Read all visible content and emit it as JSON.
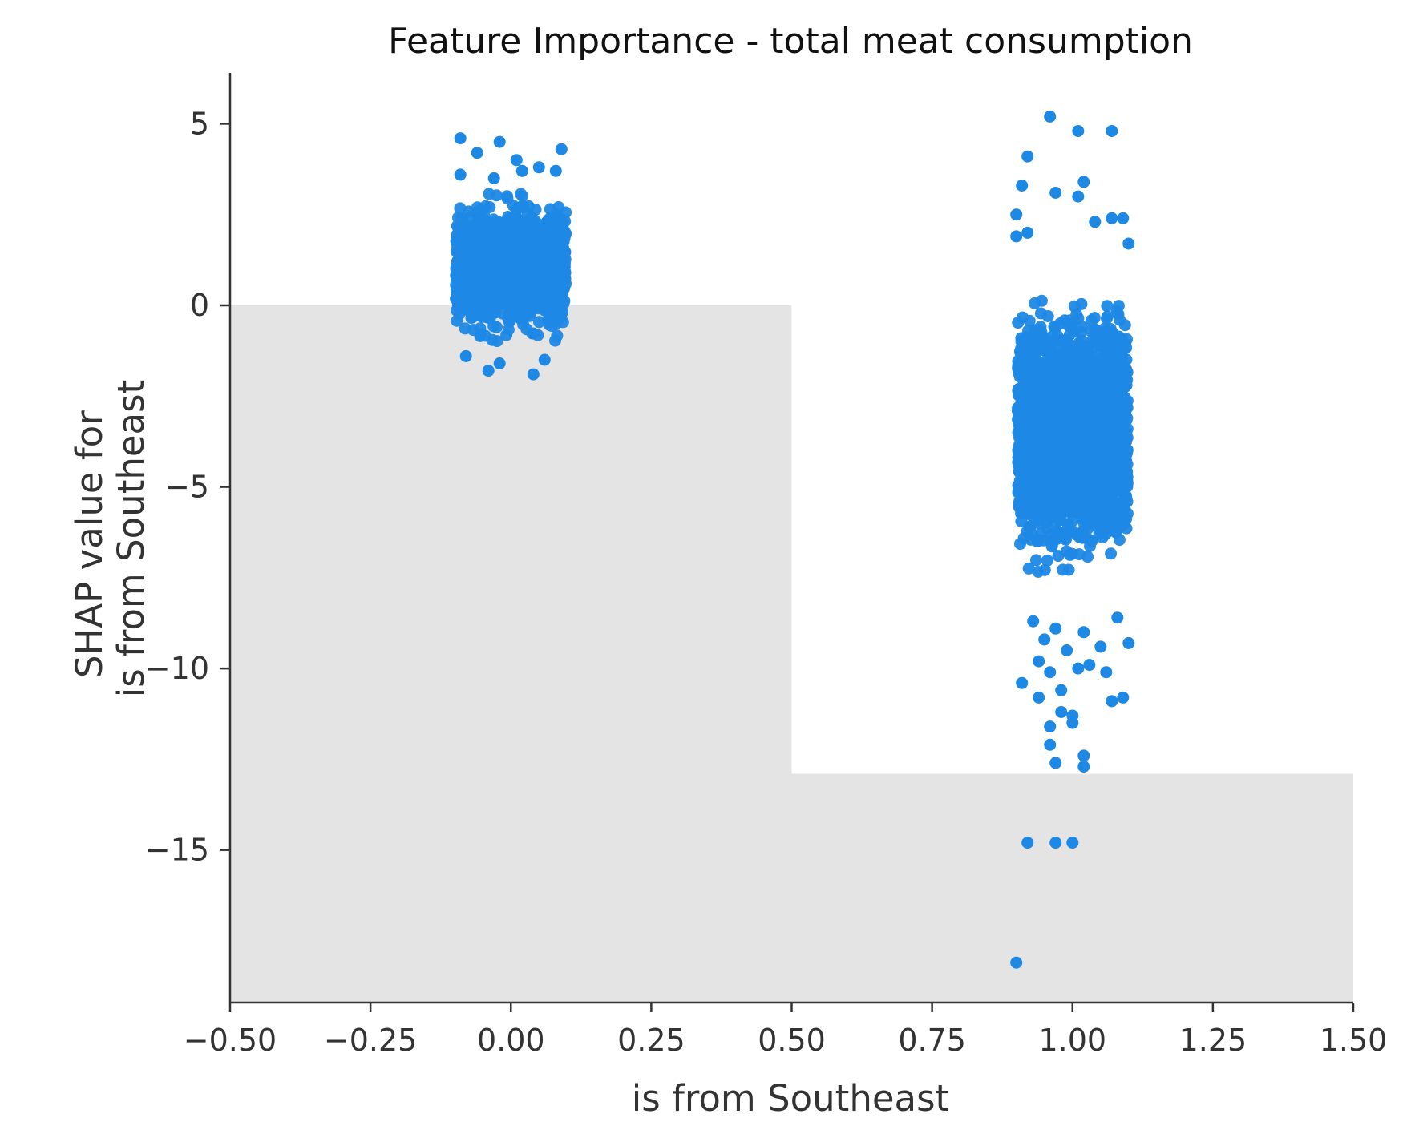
{
  "chart_data": {
    "type": "scatter",
    "title": "Feature Importance - total meat consumption",
    "xlabel": "is from Southeast",
    "ylabel_lines": [
      "SHAP value for",
      "is from Southeast"
    ],
    "xlim": [
      -0.5,
      1.5
    ],
    "ylim": [
      -19.2,
      6.4
    ],
    "x_ticks": [
      -0.5,
      -0.25,
      0.0,
      0.25,
      0.5,
      0.75,
      1.0,
      1.25,
      1.5
    ],
    "x_tick_labels": [
      "−0.50",
      "−0.25",
      "0.00",
      "0.25",
      "0.50",
      "0.75",
      "1.00",
      "1.25",
      "1.50"
    ],
    "y_ticks": [
      5,
      0,
      -5,
      -10,
      -15
    ],
    "y_tick_labels": [
      "5",
      "0",
      "−5",
      "−10",
      "−15"
    ],
    "grid": false,
    "point_color": "#1E88E5",
    "background_histogram_color": "#e4e4e4",
    "background_histogram": [
      {
        "x0": -0.5,
        "x1": 0.5,
        "level": 0.0
      },
      {
        "x0": 0.5,
        "x1": 1.5,
        "level": -12.9
      }
    ],
    "clusters": [
      {
        "x_center": 0.0,
        "jitter": 0.1,
        "dense_y_range": [
          -1.2,
          3.3
        ],
        "dense_count": 1500
      },
      {
        "x_center": 1.0,
        "jitter": 0.1,
        "dense_y_range": [
          -7.6,
          0.6
        ],
        "dense_count": 2500
      }
    ],
    "outliers": [
      [
        -0.09,
        4.6
      ],
      [
        -0.06,
        4.2
      ],
      [
        -0.02,
        4.5
      ],
      [
        0.09,
        4.3
      ],
      [
        0.01,
        4.0
      ],
      [
        -0.09,
        3.6
      ],
      [
        0.05,
        3.8
      ],
      [
        0.08,
        3.7
      ],
      [
        -0.03,
        3.5
      ],
      [
        0.02,
        3.7
      ],
      [
        -0.04,
        -1.8
      ],
      [
        0.04,
        -1.9
      ],
      [
        -0.08,
        -1.4
      ],
      [
        0.06,
        -1.5
      ],
      [
        -0.02,
        -1.6
      ],
      [
        0.96,
        5.2
      ],
      [
        1.01,
        4.8
      ],
      [
        1.07,
        4.8
      ],
      [
        0.92,
        4.1
      ],
      [
        0.97,
        3.1
      ],
      [
        0.91,
        3.3
      ],
      [
        1.02,
        3.4
      ],
      [
        1.01,
        3.0
      ],
      [
        0.9,
        2.5
      ],
      [
        1.07,
        2.4
      ],
      [
        1.09,
        2.4
      ],
      [
        1.04,
        2.3
      ],
      [
        1.1,
        1.7
      ],
      [
        0.9,
        1.9
      ],
      [
        0.92,
        2.0
      ],
      [
        0.93,
        -8.7
      ],
      [
        0.95,
        -9.2
      ],
      [
        0.97,
        -8.9
      ],
      [
        0.99,
        -9.5
      ],
      [
        1.02,
        -9.0
      ],
      [
        1.05,
        -9.4
      ],
      [
        1.08,
        -8.6
      ],
      [
        1.1,
        -9.3
      ],
      [
        0.94,
        -9.8
      ],
      [
        1.01,
        -10.0
      ],
      [
        0.91,
        -10.4
      ],
      [
        0.96,
        -10.1
      ],
      [
        0.98,
        -10.6
      ],
      [
        1.03,
        -9.9
      ],
      [
        1.06,
        -10.1
      ],
      [
        1.09,
        -10.8
      ],
      [
        1.07,
        -10.9
      ],
      [
        0.94,
        -10.8
      ],
      [
        0.98,
        -11.2
      ],
      [
        0.96,
        -11.6
      ],
      [
        1.0,
        -11.3
      ],
      [
        1.0,
        -11.5
      ],
      [
        0.96,
        -12.1
      ],
      [
        1.02,
        -12.4
      ],
      [
        0.97,
        -12.6
      ],
      [
        1.02,
        -12.7
      ],
      [
        0.92,
        -14.8
      ],
      [
        0.97,
        -14.8
      ],
      [
        1.0,
        -14.8
      ],
      [
        0.9,
        -18.1
      ]
    ]
  }
}
